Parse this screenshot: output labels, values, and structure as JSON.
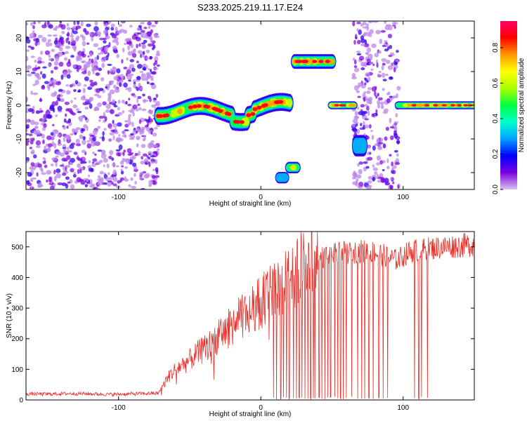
{
  "title": "S233.2025.219.11.17.E24",
  "colorbar": {
    "label": "Normalized spectral amplitude",
    "ticks": [
      0.0,
      0.2,
      0.4,
      0.6,
      0.8
    ],
    "range": [
      0,
      0.95
    ],
    "colors": [
      "#d9c2f0",
      "#7a00e0",
      "#0000ff",
      "#00a0ff",
      "#00ffd0",
      "#00ff40",
      "#aaff00",
      "#ffff00",
      "#ff9900",
      "#ff0000",
      "#ff0066"
    ]
  },
  "chart_data": [
    {
      "type": "heatmap",
      "title": "S233.2025.219.11.17.E24",
      "xlabel": "Height of straight line (km)",
      "ylabel": "Frequency (Hz)",
      "xlim": [
        -165,
        150
      ],
      "ylim": [
        -25,
        25
      ],
      "xticks": [
        -100,
        0,
        100
      ],
      "yticks": [
        -20,
        -10,
        0,
        10,
        20
      ],
      "value_label": "Normalized spectral amplitude",
      "noise_regions": [
        {
          "x": [
            -165,
            -72
          ],
          "y": [
            -25,
            25
          ],
          "density": 0.9
        },
        {
          "x": [
            65,
            97
          ],
          "y": [
            -25,
            25
          ],
          "density": 0.8
        }
      ],
      "features": [
        {
          "x": [
            -72,
            20
          ],
          "y": [
            -3,
            2
          ],
          "peak": 0.85,
          "note": "wavy band near 0 Hz"
        },
        {
          "x": [
            50,
            65
          ],
          "y": [
            -1,
            1
          ],
          "peak": 0.9
        },
        {
          "x": [
            97,
            150
          ],
          "y": [
            -1,
            1
          ],
          "peak": 0.85
        },
        {
          "x": [
            24,
            50
          ],
          "y": [
            11,
            15
          ],
          "peak": 0.9
        },
        {
          "x": [
            20,
            25
          ],
          "y": [
            -20,
            -17
          ],
          "peak": 0.7
        },
        {
          "x": [
            13,
            17
          ],
          "y": [
            -23,
            -20
          ],
          "peak": 0.3
        },
        {
          "x": [
            67,
            72
          ],
          "y": [
            -15,
            -9
          ],
          "peak": 0.3
        }
      ]
    },
    {
      "type": "line",
      "xlabel": "Height of straight line (km)",
      "ylabel": "SNR (10 * v/v)",
      "xlim": [
        -165,
        150
      ],
      "ylim": [
        0,
        550
      ],
      "xticks": [
        -100,
        0,
        100
      ],
      "yticks": [
        0,
        100,
        200,
        300,
        400,
        500
      ],
      "color": "#e8302a",
      "series": [
        {
          "x": [
            -165,
            -150,
            -135,
            -120,
            -105,
            -90,
            -80,
            -72,
            -65,
            -60,
            -55,
            -50,
            -45,
            -40,
            -35,
            -30,
            -25,
            -20,
            -15,
            -10,
            -5,
            0,
            5,
            10,
            15,
            20,
            25,
            30,
            35,
            40,
            45,
            50,
            55,
            60,
            65,
            70,
            75,
            80,
            85,
            90,
            95,
            100,
            105,
            110,
            115,
            120,
            125,
            130,
            135,
            140,
            145,
            150
          ],
          "values": [
            20,
            19,
            21,
            20,
            18,
            20,
            21,
            22,
            75,
            100,
            115,
            130,
            150,
            165,
            185,
            205,
            225,
            245,
            265,
            280,
            300,
            320,
            340,
            360,
            375,
            395,
            415,
            430,
            445,
            460,
            470,
            475,
            478,
            480,
            482,
            485,
            485,
            482,
            475,
            465,
            458,
            470,
            485,
            490,
            492,
            495,
            498,
            500,
            502,
            504,
            506,
            508
          ]
        }
      ],
      "dropouts_x": [
        9,
        11,
        14,
        16,
        18,
        20,
        23,
        25,
        27,
        29,
        31,
        33,
        35,
        37,
        38,
        41,
        43,
        45,
        47,
        49,
        52,
        54,
        56,
        58,
        60,
        64,
        68,
        71,
        73,
        76,
        79,
        83,
        86,
        89,
        108,
        111,
        113,
        117
      ]
    }
  ]
}
